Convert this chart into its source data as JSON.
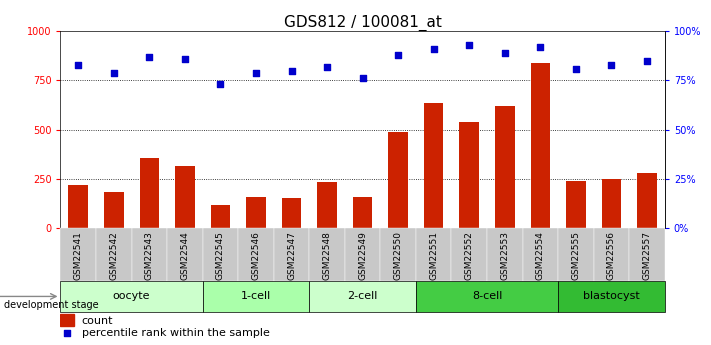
{
  "title": "GDS812 / 100081_at",
  "samples": [
    "GSM22541",
    "GSM22542",
    "GSM22543",
    "GSM22544",
    "GSM22545",
    "GSM22546",
    "GSM22547",
    "GSM22548",
    "GSM22549",
    "GSM22550",
    "GSM22551",
    "GSM22552",
    "GSM22553",
    "GSM22554",
    "GSM22555",
    "GSM22556",
    "GSM22557"
  ],
  "counts": [
    220,
    185,
    355,
    315,
    120,
    160,
    155,
    235,
    160,
    490,
    635,
    540,
    620,
    840,
    240,
    250,
    280
  ],
  "percentiles": [
    83,
    79,
    87,
    86,
    73,
    79,
    80,
    82,
    76,
    88,
    91,
    93,
    89,
    92,
    81,
    83,
    85
  ],
  "stages": [
    {
      "label": "oocyte",
      "start": 0,
      "end": 4,
      "color": "#ccffcc"
    },
    {
      "label": "1-cell",
      "start": 4,
      "end": 7,
      "color": "#aaffaa"
    },
    {
      "label": "2-cell",
      "start": 7,
      "end": 10,
      "color": "#ccffcc"
    },
    {
      "label": "8-cell",
      "start": 10,
      "end": 14,
      "color": "#44cc44"
    },
    {
      "label": "blastocyst",
      "start": 14,
      "end": 17,
      "color": "#33bb33"
    }
  ],
  "bar_color": "#cc2200",
  "dot_color": "#0000cc",
  "ylim_left": [
    0,
    1000
  ],
  "ylim_right": [
    0,
    100
  ],
  "yticks_left": [
    0,
    250,
    500,
    750,
    1000
  ],
  "yticks_right": [
    0,
    25,
    50,
    75,
    100
  ],
  "title_fontsize": 11,
  "tick_label_fontsize": 6.5,
  "stage_fontsize": 8,
  "legend_fontsize": 8,
  "dev_stage_label": "development stage",
  "legend_count": "count",
  "legend_pct": "percentile rank within the sample",
  "bar_width": 0.55,
  "xtick_bg": "#c8c8c8"
}
